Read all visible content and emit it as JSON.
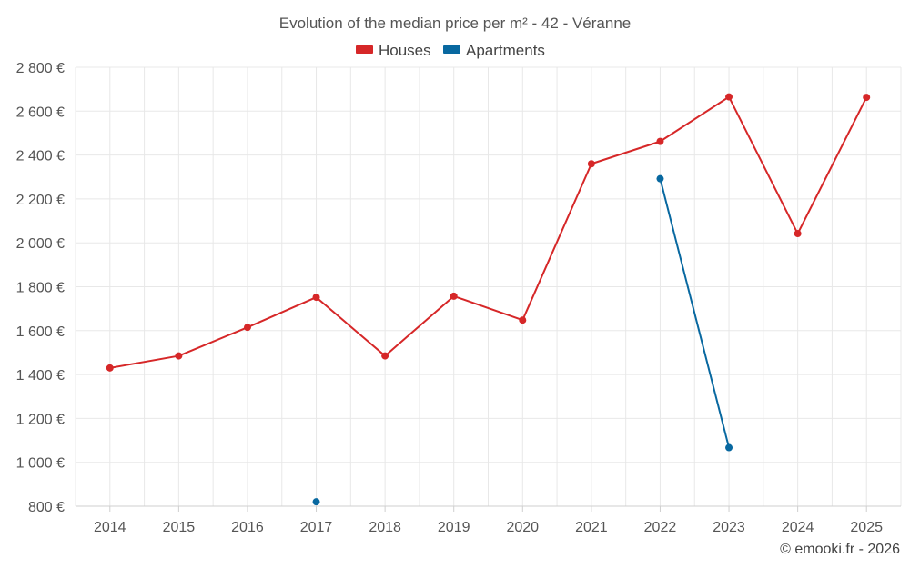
{
  "chart_data": {
    "type": "line",
    "title": "Evolution of the median price per m² - 42 - Véranne",
    "categories": [
      "2014",
      "2015",
      "2016",
      "2017",
      "2018",
      "2019",
      "2020",
      "2021",
      "2022",
      "2023",
      "2024",
      "2025"
    ],
    "series": [
      {
        "name": "Houses",
        "color": "#d62728",
        "values": [
          1430,
          1485,
          1615,
          1752,
          1485,
          1757,
          1648,
          2360,
          2462,
          2665,
          2042,
          2663
        ]
      },
      {
        "name": "Apartments",
        "color": "#0868a0",
        "values": [
          null,
          null,
          null,
          820,
          null,
          null,
          null,
          null,
          2292,
          1067,
          null,
          null
        ]
      }
    ],
    "ylim": [
      800,
      2800
    ],
    "yticks": [
      800,
      1000,
      1200,
      1400,
      1600,
      1800,
      2000,
      2200,
      2400,
      2600,
      2800
    ],
    "ytick_labels": [
      "800 €",
      "1 000 €",
      "1 200 €",
      "1 400 €",
      "1 600 €",
      "1 800 €",
      "2 000 €",
      "2 200 €",
      "2 400 €",
      "2 600 €",
      "2 800 €"
    ],
    "grid": true,
    "legend_position": "top-center",
    "credit": "© emooki.fr - 2026"
  }
}
